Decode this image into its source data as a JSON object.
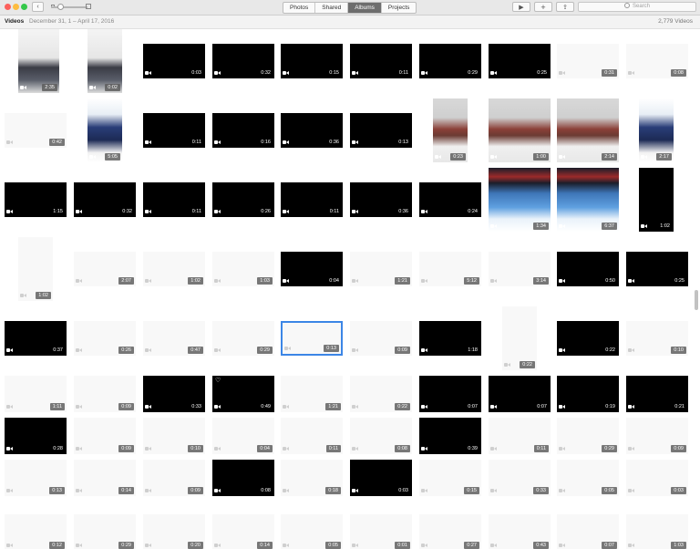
{
  "toolbar": {
    "back_glyph": "‹",
    "tabs": [
      {
        "label": "Photos",
        "active": false
      },
      {
        "label": "Shared",
        "active": false
      },
      {
        "label": "Albums",
        "active": true
      },
      {
        "label": "Projects",
        "active": false
      }
    ],
    "play_glyph": "▶",
    "add_glyph": "+",
    "share_glyph": "⇪",
    "search_placeholder": "Search"
  },
  "header": {
    "title": "Videos",
    "date_range": "December 31, 1 – April 17, 2016",
    "count": "2,779 Videos"
  },
  "rows": [
    [
      "p:2:35",
      "p:0:02",
      "b:0:03",
      "b:0:32",
      "b:0:15",
      "b:0:11",
      "b:0:29",
      "b:0:25",
      "e:0:31",
      "e:0:08"
    ],
    [
      "e:0:42",
      "p:5:05",
      "b:0:11",
      "b:0:16",
      "b:0:36",
      "b:0:13",
      "p:0:23",
      "p:1:00",
      "p:2:14",
      "p:2:17"
    ],
    [
      "b:1:15",
      "b:0:32",
      "b:0:11",
      "b:0:26",
      "b:0:11",
      "b:0:36",
      "b:0:24",
      "p:1:34",
      "p:6:37",
      "b:1:02"
    ],
    [
      "e:1:02",
      "e:2:07",
      "e:1:02",
      "e:1:03",
      "b:0:04",
      "e:1:21",
      "e:5:12",
      "e:3:14",
      "b:0:50",
      "b:0:25"
    ],
    [
      "b:0:37",
      "e:0:26",
      "e:0:47",
      "e:0:29",
      "s:0:13",
      "e:0:09",
      "b:1:18",
      "e:0:22",
      "b:0:22",
      "e:0:10"
    ],
    [
      "e:1:11",
      "e:0:09",
      "b:0:33",
      "h:0:49",
      "e:1:21",
      "e:0:22",
      "b:0:07",
      "b:0:07",
      "b:0:19",
      "b:0:21"
    ],
    [
      "b:0:28",
      "e:0:09",
      "e:0:10",
      "e:0:04",
      "e:0:11",
      "e:0:08",
      "b:0:39",
      "e:0:11",
      "e:0:29",
      "e:0:09"
    ],
    [
      "e:0:13",
      "e:0:14",
      "e:0:09",
      "b:0:08",
      "e:0:18",
      "b:0:03",
      "e:0:15",
      "e:0:33",
      "e:0:05",
      "e:0:03"
    ],
    [
      "e:0:12",
      "e:0:29",
      "e:0:20",
      "e:0:14",
      "e:0:05",
      "e:0:01",
      "e:0:27",
      "e:0:43",
      "e:0:07",
      "e:1:03"
    ]
  ]
}
